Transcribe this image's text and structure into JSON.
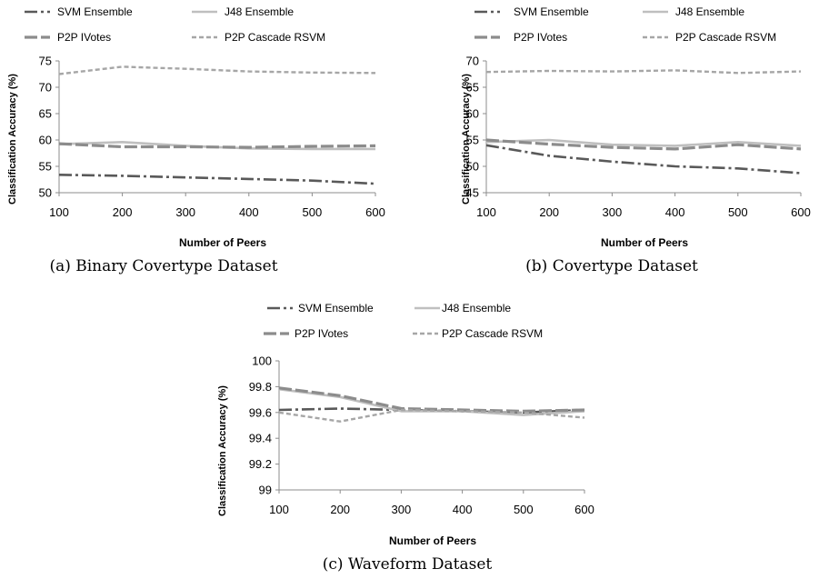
{
  "colors": {
    "svm": "#595959",
    "j48": "#bfbfbf",
    "p2p_ivotes": "#8c8c8c",
    "cascade": "#a6a6a6",
    "axis": "#8c8c8c",
    "text": "#000000"
  },
  "chart_data": [
    {
      "type": "line",
      "caption": "(a) Binary Covertype Dataset",
      "xlabel": "Number of Peers",
      "ylabel": "Classification Accuracy (%)",
      "x": [
        100,
        200,
        300,
        400,
        500,
        600
      ],
      "xticks": [
        "100",
        "200",
        "300",
        "400",
        "500",
        "600"
      ],
      "ylim": [
        50,
        75
      ],
      "yticks": [
        "50",
        "55",
        "60",
        "65",
        "70",
        "75"
      ],
      "grid": false,
      "legend_position": "top",
      "series": [
        {
          "name": "SVM Ensemble",
          "values": [
            53.4,
            53.2,
            52.9,
            52.6,
            52.3,
            51.7
          ]
        },
        {
          "name": "J48 Ensemble",
          "values": [
            59.2,
            59.6,
            58.9,
            58.4,
            58.3,
            58.3
          ]
        },
        {
          "name": "P2P IVotes",
          "values": [
            59.3,
            58.7,
            58.7,
            58.6,
            58.8,
            58.9
          ]
        },
        {
          "name": "P2P Cascade RSVM",
          "values": [
            72.5,
            73.9,
            73.5,
            73.0,
            72.8,
            72.7
          ]
        }
      ]
    },
    {
      "type": "line",
      "caption": "(b) Covertype Dataset",
      "xlabel": "Number of Peers",
      "ylabel": "Classification Accuracy (%)",
      "x": [
        100,
        200,
        300,
        400,
        500,
        600
      ],
      "xticks": [
        "100",
        "200",
        "300",
        "400",
        "500",
        "600"
      ],
      "ylim": [
        45,
        70
      ],
      "yticks": [
        "45",
        "50",
        "55",
        "60",
        "65",
        "70"
      ],
      "grid": false,
      "legend_position": "top",
      "series": [
        {
          "name": "SVM Ensemble",
          "values": [
            54.0,
            52.0,
            50.9,
            50.0,
            49.6,
            48.7
          ]
        },
        {
          "name": "J48 Ensemble",
          "values": [
            54.6,
            55.0,
            54.1,
            53.9,
            54.6,
            53.9
          ]
        },
        {
          "name": "P2P IVotes",
          "values": [
            55.0,
            54.2,
            53.6,
            53.3,
            54.1,
            53.3
          ]
        },
        {
          "name": "P2P Cascade RSVM",
          "values": [
            67.9,
            68.1,
            68.0,
            68.2,
            67.7,
            68.0
          ]
        }
      ]
    },
    {
      "type": "line",
      "caption": "(c) Waveform Dataset",
      "xlabel": "Number of Peers",
      "ylabel": "Classification Accuracy (%)",
      "x": [
        100,
        200,
        300,
        400,
        500,
        600
      ],
      "xticks": [
        "100",
        "200",
        "300",
        "400",
        "500",
        "600"
      ],
      "ylim": [
        99,
        100
      ],
      "yticks": [
        "99",
        "99.2",
        "99.4",
        "99.6",
        "99.8",
        "100"
      ],
      "grid": false,
      "legend_position": "top",
      "series": [
        {
          "name": "SVM Ensemble",
          "values": [
            99.62,
            99.63,
            99.62,
            99.61,
            99.6,
            99.62
          ]
        },
        {
          "name": "J48 Ensemble",
          "values": [
            99.78,
            99.72,
            99.61,
            99.61,
            99.58,
            99.61
          ]
        },
        {
          "name": "P2P IVotes",
          "values": [
            99.79,
            99.73,
            99.63,
            99.62,
            99.61,
            99.62
          ]
        },
        {
          "name": "P2P Cascade RSVM",
          "values": [
            99.6,
            99.53,
            99.62,
            99.61,
            99.6,
            99.56
          ]
        }
      ]
    }
  ]
}
